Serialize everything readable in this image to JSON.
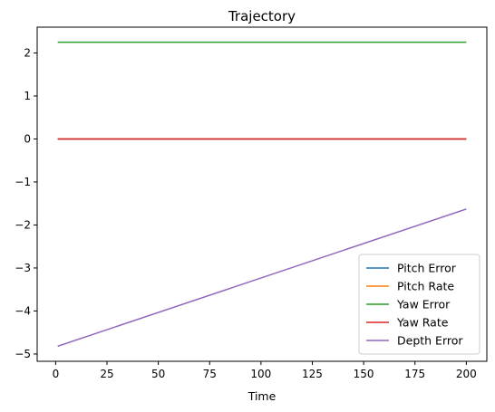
{
  "chart_data": {
    "type": "line",
    "title": "Trajectory",
    "xlabel": "Time",
    "ylabel": "",
    "xlim": [
      -9,
      210
    ],
    "ylim": [
      -5.17,
      2.6
    ],
    "xticks": [
      0,
      25,
      50,
      75,
      100,
      125,
      150,
      175,
      200
    ],
    "yticks": [
      2,
      1,
      0,
      -1,
      -2,
      -3,
      -4,
      -5
    ],
    "ytick_labels": [
      "2",
      "1",
      "0",
      "−1",
      "−2",
      "−3",
      "−4",
      "−5"
    ],
    "grid": false,
    "legend_position": "lower-right",
    "series": [
      {
        "name": "Pitch Error",
        "color": "#1f77b4",
        "x": [
          1,
          200
        ],
        "y": [
          0,
          0
        ]
      },
      {
        "name": "Pitch Rate",
        "color": "#ff7f0e",
        "x": [
          1,
          200
        ],
        "y": [
          0,
          0
        ]
      },
      {
        "name": "Yaw Error",
        "color": "#2ca02c",
        "x": [
          1,
          200
        ],
        "y": [
          2.25,
          2.25
        ]
      },
      {
        "name": "Yaw Rate",
        "color": "#d62728",
        "x": [
          1,
          200
        ],
        "y": [
          0,
          0
        ]
      },
      {
        "name": "Depth Error",
        "color": "#9467bd",
        "x": [
          1,
          200
        ],
        "y": [
          -4.82,
          -1.63
        ]
      }
    ]
  }
}
